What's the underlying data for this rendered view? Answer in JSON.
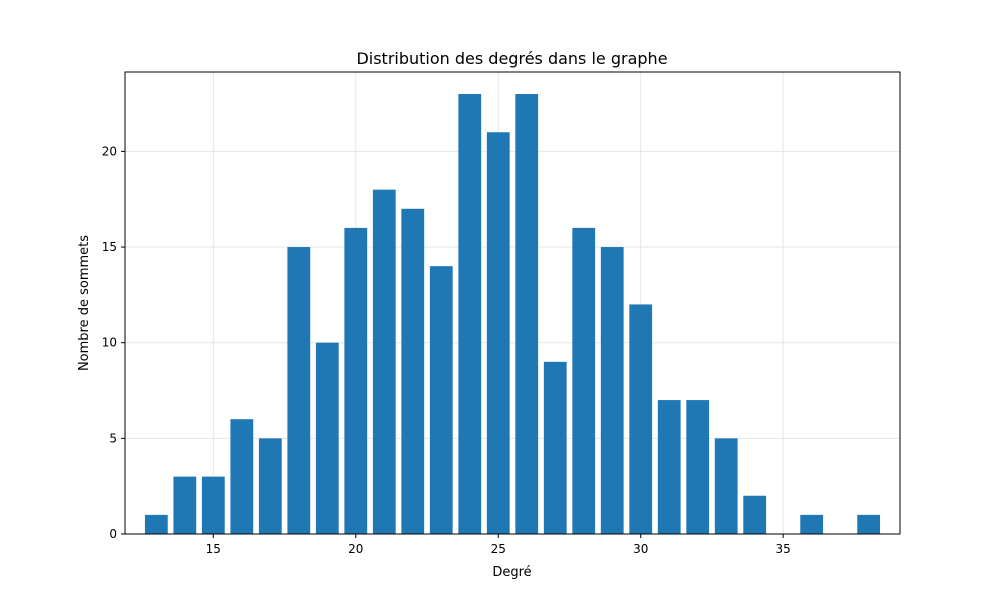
{
  "chart_data": {
    "type": "bar",
    "title": "Distribution des degrés dans le graphe",
    "xlabel": "Degré",
    "ylabel": "Nombre de sommets",
    "x": [
      13,
      14,
      15,
      16,
      17,
      18,
      19,
      20,
      21,
      22,
      23,
      24,
      25,
      26,
      27,
      28,
      29,
      30,
      31,
      32,
      33,
      34,
      36,
      38
    ],
    "values": [
      1,
      3,
      3,
      6,
      5,
      15,
      10,
      16,
      18,
      17,
      14,
      23,
      21,
      23,
      9,
      16,
      15,
      12,
      7,
      7,
      5,
      2,
      1,
      1
    ],
    "xlim": [
      11.9,
      39.1
    ],
    "ylim": [
      0,
      24.15
    ],
    "xticks": [
      15,
      20,
      25,
      30,
      35
    ],
    "yticks": [
      0,
      5,
      10,
      15,
      20
    ],
    "grid": true,
    "bar_color": "#1f77b4"
  }
}
